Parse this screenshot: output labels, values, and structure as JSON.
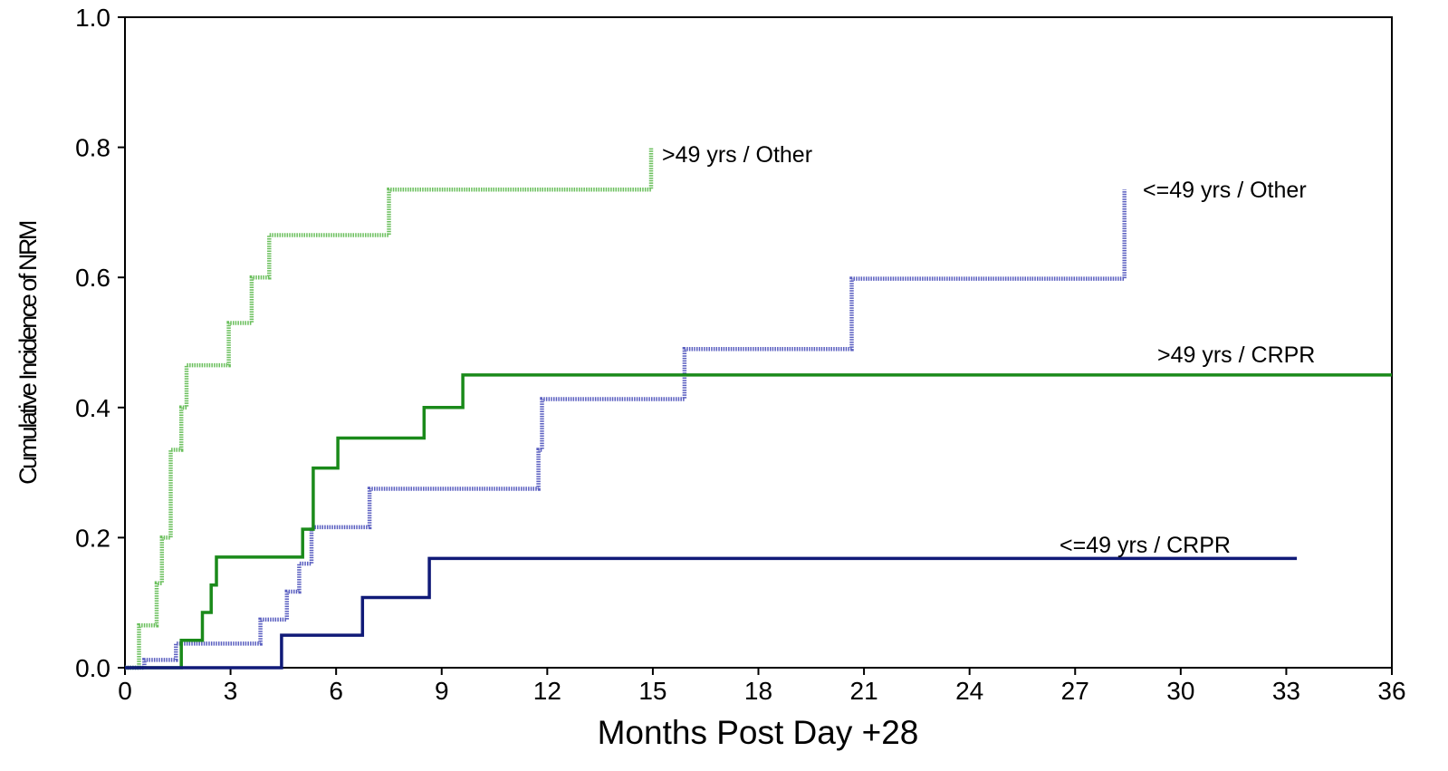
{
  "chart_data": {
    "type": "line",
    "step": true,
    "xlabel": "Months Post Day +28",
    "ylabel": "Cumulative Incidence of NRM",
    "xlim": [
      0,
      36
    ],
    "ylim": [
      0,
      1.0
    ],
    "xticks": [
      "0",
      "3",
      "6",
      "9",
      "12",
      "15",
      "18",
      "21",
      "24",
      "27",
      "30",
      "33",
      "36"
    ],
    "yticks": [
      "0.0",
      "0.2",
      "0.4",
      "0.6",
      "0.8",
      "1.0"
    ],
    "grid": false,
    "series": [
      {
        "name": ">49 yrs / Other",
        "color": "#6abf5c",
        "style": "dotted",
        "points": [
          [
            0,
            0.0
          ],
          [
            0.4,
            0.0
          ],
          [
            0.4,
            0.065
          ],
          [
            0.9,
            0.065
          ],
          [
            0.9,
            0.13
          ],
          [
            1.05,
            0.13
          ],
          [
            1.05,
            0.2
          ],
          [
            1.3,
            0.2
          ],
          [
            1.3,
            0.335
          ],
          [
            1.6,
            0.335
          ],
          [
            1.6,
            0.4
          ],
          [
            1.75,
            0.4
          ],
          [
            1.75,
            0.465
          ],
          [
            2.95,
            0.465
          ],
          [
            2.95,
            0.53
          ],
          [
            3.6,
            0.53
          ],
          [
            3.6,
            0.6
          ],
          [
            4.1,
            0.6
          ],
          [
            4.1,
            0.665
          ],
          [
            7.5,
            0.665
          ],
          [
            7.5,
            0.735
          ],
          [
            14.95,
            0.735
          ],
          [
            14.95,
            0.8
          ]
        ]
      },
      {
        "name": "<=49 yrs / Other",
        "color": "#5a5fc0",
        "style": "dotted",
        "points": [
          [
            0,
            0.0
          ],
          [
            0.55,
            0.0
          ],
          [
            0.55,
            0.012
          ],
          [
            1.45,
            0.012
          ],
          [
            1.45,
            0.037
          ],
          [
            3.85,
            0.037
          ],
          [
            3.85,
            0.074
          ],
          [
            4.6,
            0.074
          ],
          [
            4.6,
            0.117
          ],
          [
            4.95,
            0.117
          ],
          [
            4.95,
            0.16
          ],
          [
            5.3,
            0.16
          ],
          [
            5.3,
            0.216
          ],
          [
            6.95,
            0.216
          ],
          [
            6.95,
            0.275
          ],
          [
            11.75,
            0.275
          ],
          [
            11.75,
            0.335
          ],
          [
            11.85,
            0.335
          ],
          [
            11.85,
            0.413
          ],
          [
            15.9,
            0.413
          ],
          [
            15.9,
            0.49
          ],
          [
            20.65,
            0.49
          ],
          [
            20.65,
            0.598
          ],
          [
            28.4,
            0.598
          ],
          [
            28.4,
            0.735
          ]
        ]
      },
      {
        "name": ">49 yrs / CRPR",
        "color": "#1a8a1a",
        "style": "solid",
        "points": [
          [
            0,
            0.0
          ],
          [
            1.6,
            0.0
          ],
          [
            1.6,
            0.042
          ],
          [
            2.2,
            0.042
          ],
          [
            2.2,
            0.085
          ],
          [
            2.45,
            0.085
          ],
          [
            2.45,
            0.127
          ],
          [
            2.6,
            0.127
          ],
          [
            2.6,
            0.17
          ],
          [
            5.05,
            0.17
          ],
          [
            5.05,
            0.213
          ],
          [
            5.35,
            0.213
          ],
          [
            5.35,
            0.307
          ],
          [
            6.05,
            0.307
          ],
          [
            6.05,
            0.353
          ],
          [
            8.5,
            0.353
          ],
          [
            8.5,
            0.4
          ],
          [
            9.6,
            0.4
          ],
          [
            9.6,
            0.45
          ],
          [
            36,
            0.45
          ]
        ]
      },
      {
        "name": "<=49 yrs / CRPR",
        "color": "#101a78",
        "style": "solid",
        "points": [
          [
            0,
            0.0
          ],
          [
            4.45,
            0.0
          ],
          [
            4.45,
            0.05
          ],
          [
            6.75,
            0.05
          ],
          [
            6.75,
            0.108
          ],
          [
            8.65,
            0.108
          ],
          [
            8.65,
            0.168
          ],
          [
            33.3,
            0.168
          ]
        ]
      }
    ]
  }
}
